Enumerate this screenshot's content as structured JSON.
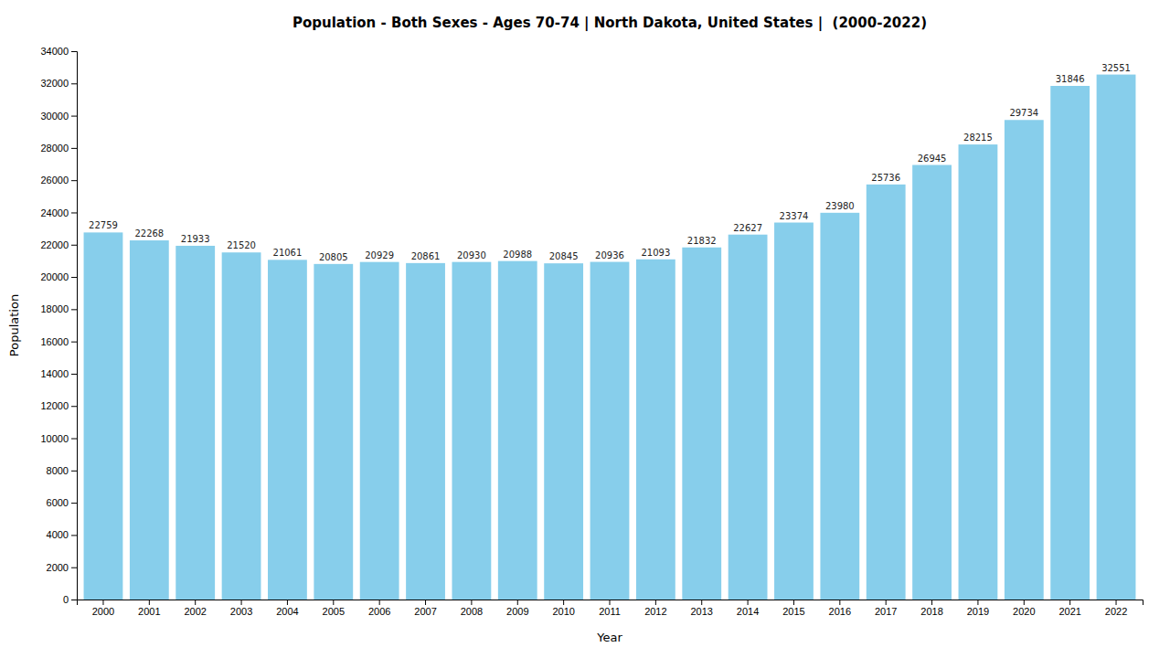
{
  "chart_data": {
    "type": "bar",
    "title": "Population - Both Sexes - Ages 70-74 | North Dakota, United States |  (2000-2022)",
    "x_label": "Year",
    "y_label": "Population",
    "categories": [
      "2000",
      "2001",
      "2002",
      "2003",
      "2004",
      "2005",
      "2006",
      "2007",
      "2008",
      "2009",
      "2010",
      "2011",
      "2012",
      "2013",
      "2014",
      "2015",
      "2016",
      "2017",
      "2018",
      "2019",
      "2020",
      "2021",
      "2022"
    ],
    "values": [
      22759,
      22268,
      21933,
      21520,
      21061,
      20805,
      20929,
      20861,
      20930,
      20988,
      20845,
      20936,
      21093,
      21832,
      22627,
      23374,
      23980,
      25736,
      26945,
      28215,
      29734,
      31846,
      32551
    ],
    "color": "#87CEEB",
    "ylim": [
      0,
      34000
    ],
    "yticks": [
      0,
      2000,
      4000,
      6000,
      8000,
      10000,
      12000,
      14000,
      16000,
      18000,
      20000,
      22000,
      24000,
      26000,
      28000,
      30000,
      32000,
      34000
    ],
    "grid": false,
    "data_labels": true
  }
}
